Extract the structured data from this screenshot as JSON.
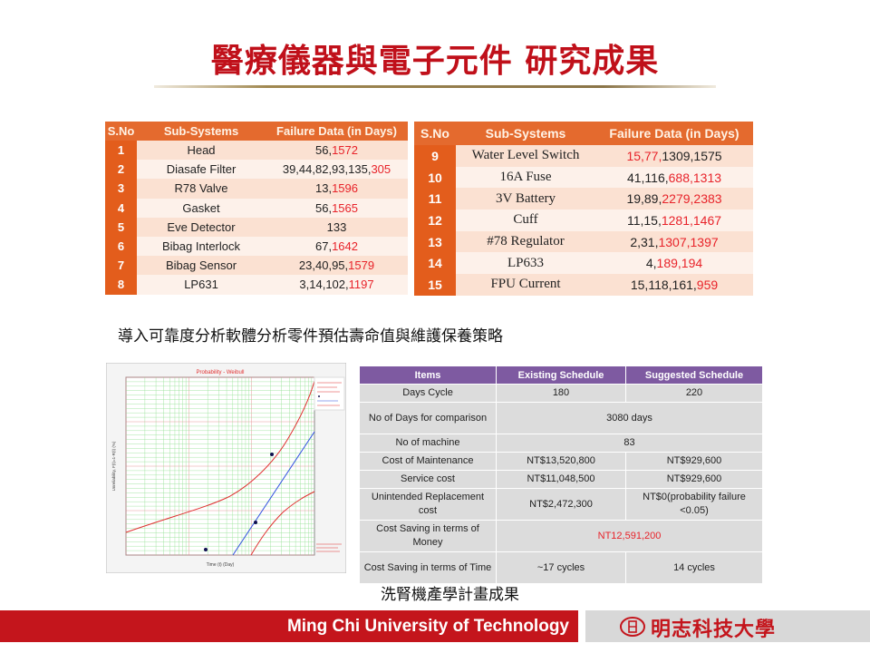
{
  "title": "醫療儀器與電子元件 研究成果",
  "table1": {
    "headers": [
      "S.No",
      "Sub-Systems",
      "Failure Data (in Days)"
    ],
    "rows": [
      {
        "sno": "1",
        "name": "Head",
        "data_black": "56,",
        "data_red": "1572"
      },
      {
        "sno": "2",
        "name": "Diasafe Filter",
        "data_black": "39,44,82,93,135,",
        "data_red": "305"
      },
      {
        "sno": "3",
        "name": "R78 Valve",
        "data_black": "13,",
        "data_red": "1596"
      },
      {
        "sno": "4",
        "name": "Gasket",
        "data_black": "56,",
        "data_red": "1565"
      },
      {
        "sno": "5",
        "name": "Eve Detector",
        "data_black": "133",
        "data_red": ""
      },
      {
        "sno": "6",
        "name": "Bibag Interlock",
        "data_black": "67,",
        "data_red": "1642"
      },
      {
        "sno": "7",
        "name": "Bibag Sensor",
        "data_black": "23,40,95,",
        "data_red": "1579"
      },
      {
        "sno": "8",
        "name": "LP631",
        "data_black": "3,14,102,",
        "data_red": "1197"
      }
    ]
  },
  "table2": {
    "headers": [
      "S.No",
      "Sub-Systems",
      "Failure Data (in Days)"
    ],
    "rows": [
      {
        "sno": "9",
        "name": "Water Level Switch",
        "data_red": "15,77,",
        "data_black": "1309,1575",
        "red_first": true
      },
      {
        "sno": "10",
        "name": "16A Fuse",
        "data_black": "41,116,",
        "data_red": "688,1313"
      },
      {
        "sno": "11",
        "name": "3V Battery",
        "data_black": "19,89,",
        "data_red": "2279,2383"
      },
      {
        "sno": "12",
        "name": "Cuff",
        "data_black": "11,15,",
        "data_red": "1281,1467"
      },
      {
        "sno": "13",
        "name": "#78 Regulator",
        "data_black": "2,31,",
        "data_red": "1307,1397"
      },
      {
        "sno": "14",
        "name": "LP633",
        "data_black": "4,",
        "data_red": "189,194"
      },
      {
        "sno": "15",
        "name": "FPU Current",
        "data_black": "15,118,161,",
        "data_red": "959"
      }
    ]
  },
  "caption_software": "導入可靠度分析軟體分析零件預估壽命值與維護保養策略",
  "plot": {
    "title": "Probability - Weibull",
    "xlabel": "Time (t) (Day)",
    "ylabel": "Unreliability, F(t)=1-R(t) (%)",
    "colors": {
      "bounds": "#e03030",
      "fit": "#3050e0",
      "points": "#101050",
      "grid_major": "#e08080",
      "grid_minor": "#90e090"
    }
  },
  "schedule": {
    "headers": [
      "Items",
      "Existing Schedule",
      "Suggested Schedule"
    ],
    "rows": [
      {
        "item": "Days Cycle",
        "existing": "180",
        "suggested": "220"
      },
      {
        "item": "No of Days for comparison",
        "merged": "3080 days"
      },
      {
        "item": "No of machine",
        "merged": "83"
      },
      {
        "item": "Cost of Maintenance",
        "existing": "NT$13,520,800",
        "suggested": "NT$929,600"
      },
      {
        "item": "Service cost",
        "existing": "NT$11,048,500",
        "suggested": "NT$929,600"
      },
      {
        "item": "Unintended Replacement cost",
        "existing": "NT$2,472,300",
        "suggested": "NT$0(probability failure <0.05)"
      },
      {
        "item": "Cost Saving in terms of Money",
        "merged_red": "NT12,591,200"
      },
      {
        "item": "Cost Saving in terms of Time",
        "existing": "~17 cycles",
        "suggested": "14 cycles"
      }
    ]
  },
  "caption_project": "洗腎機產學計畫成果",
  "footer": {
    "university_en": "Ming Chi University of Technology",
    "university_cn": "明志科技大學",
    "brand_color": "#c4151c"
  }
}
